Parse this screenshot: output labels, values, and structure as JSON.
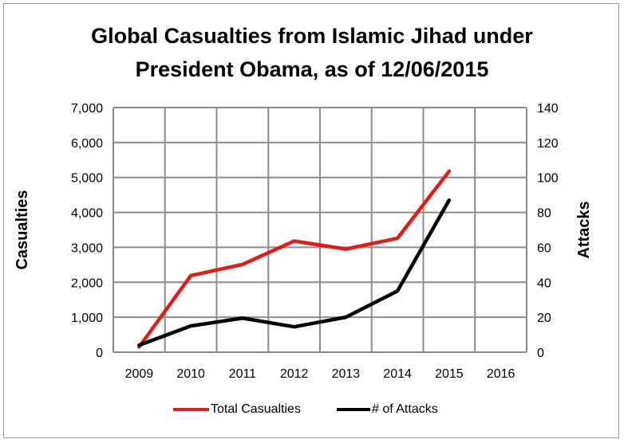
{
  "chart_data": {
    "type": "line",
    "title_lines": [
      "Global Casualties  from Islamic Jihad under",
      "President Obama, as of 12/06/2015"
    ],
    "categories": [
      "2009",
      "2010",
      "2011",
      "2012",
      "2013",
      "2014",
      "2015",
      "2016"
    ],
    "ylabel": "Casualties",
    "y2label": "Attacks",
    "ylim": [
      0,
      7000
    ],
    "y2lim": [
      0,
      140
    ],
    "yticks": [
      "0",
      "1,000",
      "2,000",
      "3,000",
      "4,000",
      "5,000",
      "6,000",
      "7,000"
    ],
    "y2ticks": [
      "0",
      "20",
      "40",
      "60",
      "80",
      "100",
      "120",
      "140"
    ],
    "grid": true,
    "legend_position": "bottom",
    "series": [
      {
        "name": "Total Casualties",
        "axis": "left",
        "color": "#e41b17",
        "values": [
          150,
          2190,
          2510,
          3180,
          2950,
          3260,
          5180,
          null
        ]
      },
      {
        "name": "# of Attacks",
        "axis": "right",
        "color": "#000000",
        "values": [
          4,
          15,
          19.5,
          14.5,
          20,
          35,
          87,
          null
        ]
      }
    ]
  }
}
